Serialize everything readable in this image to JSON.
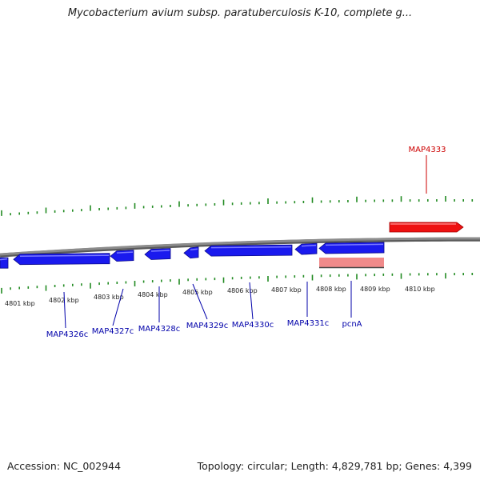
{
  "title": "Mycobacterium avium subsp. paratuberculosis K-10, complete g...",
  "footer": {
    "accession": "Accession: NC_002944",
    "summary": "Topology: circular; Length: 4,829,781 bp; Genes: 4,399"
  },
  "colors": {
    "forward_gene": "#ee1111",
    "reverse_gene": "#1a1aee",
    "rna_feature": "#f08a8a",
    "tick": "#228b22",
    "backbone": "#8c8c8c",
    "forward_label": "#cc0000",
    "reverse_label": "#0000aa"
  },
  "kbp_labels": [
    "4801 kbp",
    "4802 kbp",
    "4803 kbp",
    "4804 kbp",
    "4805 kbp",
    "4806 kbp",
    "4807 kbp",
    "4808 kbp",
    "4809 kbp",
    "4810 kbp"
  ],
  "forward_genes": [
    {
      "label": "MAP4333"
    }
  ],
  "reverse_genes": [
    {
      "label": "MAP4326c"
    },
    {
      "label": "MAP4327c"
    },
    {
      "label": "MAP4328c"
    },
    {
      "label": "MAP4329c"
    },
    {
      "label": "MAP4330c"
    },
    {
      "label": "MAP4331c"
    },
    {
      "label": "pcnA"
    }
  ]
}
